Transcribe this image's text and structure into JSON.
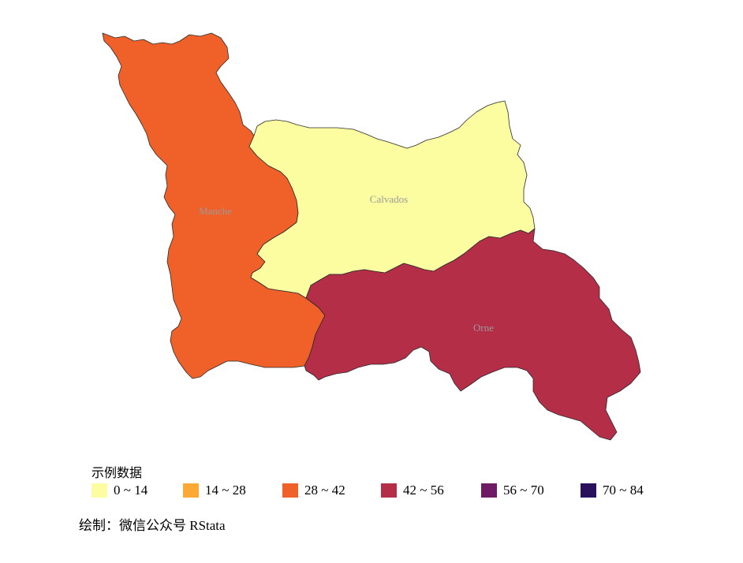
{
  "regions": [
    {
      "name": "Manche",
      "color": "#f06029"
    },
    {
      "name": "Calvados",
      "color": "#fcfca0"
    },
    {
      "name": "Orne",
      "color": "#b42e48"
    }
  ],
  "legend": {
    "title": "示例数据",
    "items": [
      {
        "label": "0 ~ 14",
        "color": "#fcfca0"
      },
      {
        "label": "14 ~ 28",
        "color": "#fca834"
      },
      {
        "label": "28 ~ 42",
        "color": "#f06029"
      },
      {
        "label": "42 ~ 56",
        "color": "#b42e48"
      },
      {
        "label": "56 ~ 70",
        "color": "#6e1a64"
      },
      {
        "label": "70 ~ 84",
        "color": "#2a115c"
      }
    ]
  },
  "caption": "绘制：微信公众号 RStata"
}
